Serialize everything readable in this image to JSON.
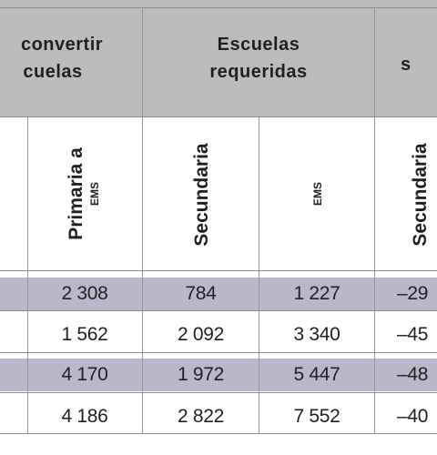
{
  "groups": {
    "convert_line1": "convertir",
    "convert_line2": "cuelas",
    "required_line1": "Escuelas",
    "required_line2": "requeridas",
    "right_partial": "s"
  },
  "subheaders": {
    "primaria_a": "Primaria a",
    "ems_small": "EMS",
    "secundaria": "Secundaria",
    "ems": "EMS",
    "secundaria_partial": "Secundaria"
  },
  "rows": [
    {
      "c1": "2 308",
      "c2": "784",
      "c3": "1 227",
      "c4": "–29"
    },
    {
      "c1": "1 562",
      "c2": "2 092",
      "c3": "3 340",
      "c4": "–45"
    },
    {
      "c1": "4 170",
      "c2": "1 972",
      "c3": "5 447",
      "c4": "–48"
    },
    {
      "c1": "4 186",
      "c2": "2 822",
      "c3": "7 552",
      "c4": "–40"
    }
  ],
  "colors": {
    "header_bg": "#bdbcbd",
    "row_shade": "#bbb6ca",
    "text": "#231f20"
  }
}
